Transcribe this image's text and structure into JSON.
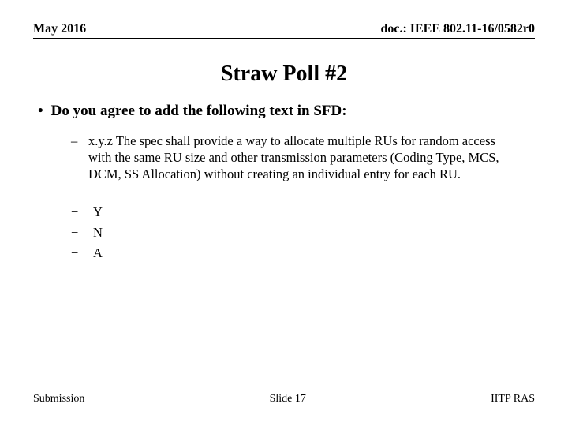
{
  "header": {
    "date": "May 2016",
    "docref": "doc.: IEEE 802.11-16/0582r0"
  },
  "title": "Straw Poll #2",
  "question": "Do you agree to add the following text in SFD:",
  "spec_text": "x.y.z The spec shall provide a way to allocate multiple RUs for random access with the same RU size and other transmission parameters (Coding Type, MCS, DCM, SS Allocation) without creating an individual entry for each RU.",
  "votes": {
    "y": "Y",
    "n": "N",
    "a": "A"
  },
  "footer": {
    "left": "Submission",
    "center": "Slide 17",
    "right": "IITP RAS"
  }
}
